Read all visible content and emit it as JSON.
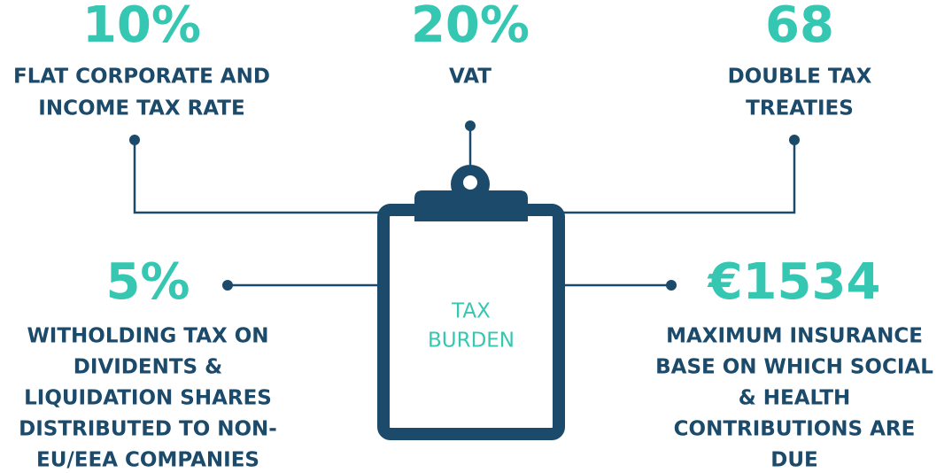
{
  "center": {
    "lines": [
      "TAX",
      "BURDEN"
    ]
  },
  "items": [
    {
      "value": "10%",
      "lines": [
        "FLAT CORPORATE AND",
        "INCOME TAX RATE"
      ]
    },
    {
      "value": "20%",
      "lines": [
        "VAT"
      ]
    },
    {
      "value": "68",
      "lines": [
        "DOUBLE TAX",
        "TREATIES"
      ]
    },
    {
      "value": "5%",
      "lines": [
        "WITHOLDING TAX ON",
        "DIVIDENTS &",
        "LIQUIDATION SHARES",
        "DISTRIBUTED TO NON-",
        "EU/EEA COMPANIES"
      ]
    },
    {
      "value": "€1534",
      "lines": [
        "MAXIMUM INSURANCE",
        "BASE ON WHICH SOCIAL",
        "& HEALTH",
        "CONTRIBUTIONS ARE",
        "DUE"
      ]
    }
  ]
}
